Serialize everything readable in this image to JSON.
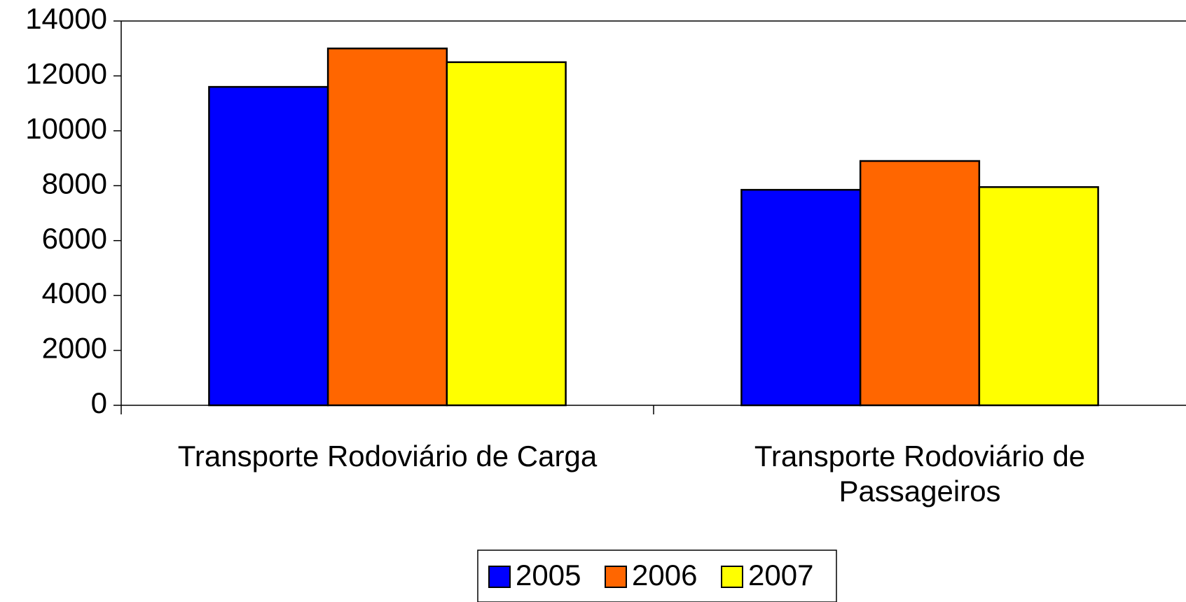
{
  "chart_data": {
    "type": "bar",
    "categories": [
      "Transporte Rodoviário de Carga",
      "Transporte Rodoviário de Passageiros"
    ],
    "series": [
      {
        "name": "2005",
        "color": "#0000ff",
        "values": [
          11600,
          7850
        ]
      },
      {
        "name": "2006",
        "color": "#ff6600",
        "values": [
          13000,
          8900
        ]
      },
      {
        "name": "2007",
        "color": "#ffff00",
        "values": [
          12500,
          7950
        ]
      }
    ],
    "ylim": [
      0,
      14000
    ],
    "yticks": [
      0,
      2000,
      4000,
      6000,
      8000,
      10000,
      12000,
      14000
    ],
    "grid": false,
    "legend": "bottom"
  }
}
